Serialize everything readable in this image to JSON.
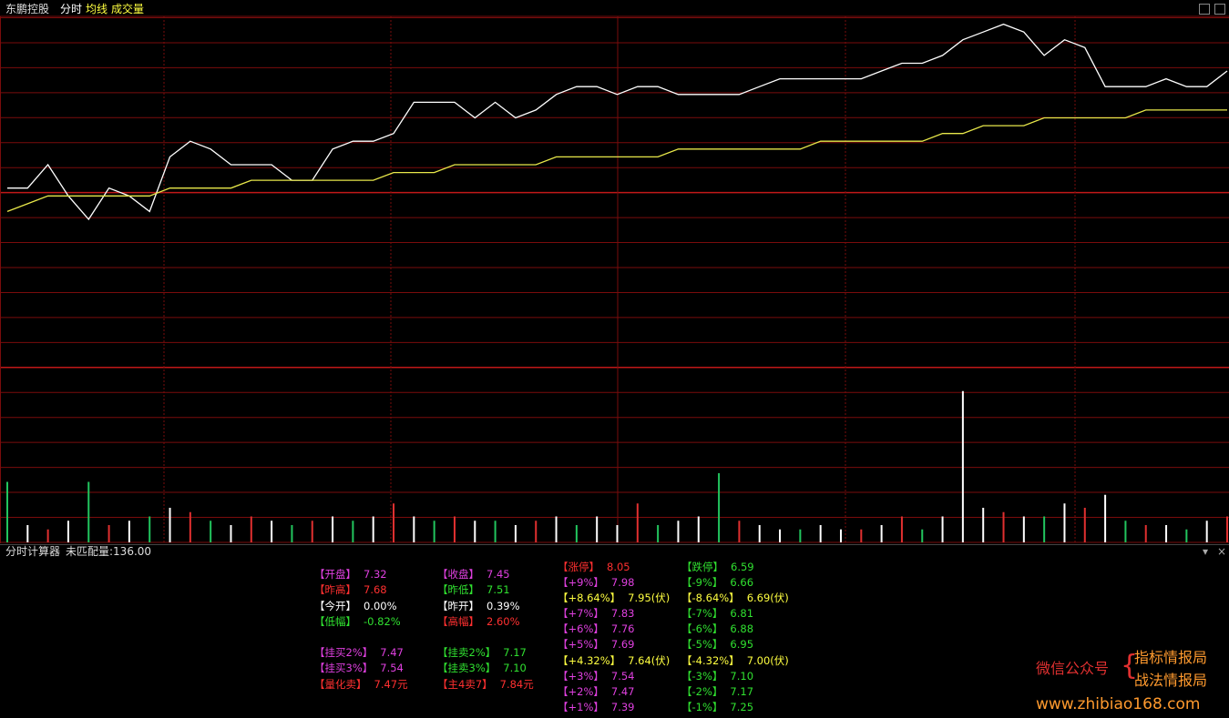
{
  "header": {
    "stock": "东鹏控股",
    "tabs": [
      "分时",
      "均线",
      "成交量"
    ]
  },
  "chart_data": [
    {
      "type": "line",
      "xlim": [
        0,
        240
      ],
      "ylim": [
        7.22,
        7.67
      ],
      "x": [
        0,
        4,
        8,
        12,
        16,
        20,
        24,
        28,
        32,
        36,
        40,
        44,
        48,
        52,
        56,
        60,
        64,
        68,
        72,
        76,
        80,
        84,
        88,
        92,
        96,
        100,
        104,
        108,
        112,
        116,
        120,
        124,
        128,
        132,
        136,
        140,
        144,
        148,
        152,
        156,
        160,
        164,
        168,
        172,
        176,
        180,
        184,
        188,
        192,
        196,
        200,
        204,
        208,
        212,
        216,
        220,
        224,
        228,
        232,
        236,
        240
      ],
      "series": [
        {
          "color": "#ffffff",
          "values": [
            7.45,
            7.45,
            7.48,
            7.44,
            7.41,
            7.45,
            7.44,
            7.42,
            7.49,
            7.51,
            7.5,
            7.48,
            7.48,
            7.48,
            7.46,
            7.46,
            7.5,
            7.51,
            7.51,
            7.52,
            7.56,
            7.56,
            7.56,
            7.54,
            7.56,
            7.54,
            7.55,
            7.57,
            7.58,
            7.58,
            7.57,
            7.58,
            7.58,
            7.57,
            7.57,
            7.57,
            7.57,
            7.58,
            7.59,
            7.59,
            7.59,
            7.59,
            7.59,
            7.6,
            7.61,
            7.61,
            7.62,
            7.64,
            7.65,
            7.66,
            7.65,
            7.62,
            7.64,
            7.63,
            7.58,
            7.58,
            7.58,
            7.59,
            7.58,
            7.58,
            7.6
          ]
        },
        {
          "color": "#e8e84a",
          "values": [
            7.42,
            7.43,
            7.44,
            7.44,
            7.44,
            7.44,
            7.44,
            7.44,
            7.45,
            7.45,
            7.45,
            7.45,
            7.46,
            7.46,
            7.46,
            7.46,
            7.46,
            7.46,
            7.46,
            7.47,
            7.47,
            7.47,
            7.48,
            7.48,
            7.48,
            7.48,
            7.48,
            7.49,
            7.49,
            7.49,
            7.49,
            7.49,
            7.49,
            7.5,
            7.5,
            7.5,
            7.5,
            7.5,
            7.5,
            7.5,
            7.51,
            7.51,
            7.51,
            7.51,
            7.51,
            7.51,
            7.52,
            7.52,
            7.53,
            7.53,
            7.53,
            7.54,
            7.54,
            7.54,
            7.54,
            7.54,
            7.55,
            7.55,
            7.55,
            7.55,
            7.55
          ]
        }
      ]
    },
    {
      "type": "bar",
      "xlim": [
        0,
        240
      ],
      "ylim": [
        0,
        200
      ],
      "x": [
        0,
        4,
        8,
        12,
        16,
        20,
        24,
        28,
        32,
        36,
        40,
        44,
        48,
        52,
        56,
        60,
        64,
        68,
        72,
        76,
        80,
        84,
        88,
        92,
        96,
        100,
        104,
        108,
        112,
        116,
        120,
        124,
        128,
        132,
        136,
        140,
        144,
        148,
        152,
        156,
        160,
        164,
        168,
        172,
        176,
        180,
        184,
        188,
        192,
        196,
        200,
        204,
        208,
        212,
        216,
        220,
        224,
        228,
        232,
        236,
        240
      ],
      "values": [
        70,
        20,
        15,
        25,
        70,
        20,
        25,
        30,
        40,
        35,
        25,
        20,
        30,
        25,
        20,
        25,
        30,
        25,
        30,
        45,
        30,
        25,
        30,
        25,
        25,
        20,
        25,
        30,
        20,
        30,
        20,
        45,
        20,
        25,
        30,
        80,
        25,
        20,
        15,
        15,
        20,
        15,
        15,
        20,
        30,
        15,
        30,
        175,
        40,
        35,
        30,
        30,
        45,
        40,
        55,
        25,
        20,
        20,
        15,
        25,
        30
      ],
      "colors": [
        "#22c55e",
        "#ffffff",
        "#e03030",
        "#ffffff",
        "#22c55e",
        "#e03030",
        "#ffffff",
        "#22c55e",
        "#ffffff",
        "#e03030",
        "#22c55e",
        "#ffffff",
        "#e03030",
        "#ffffff",
        "#22c55e",
        "#e03030",
        "#ffffff",
        "#22c55e",
        "#ffffff",
        "#e03030",
        "#ffffff",
        "#22c55e",
        "#e03030",
        "#ffffff",
        "#22c55e",
        "#ffffff",
        "#e03030",
        "#ffffff",
        "#22c55e",
        "#ffffff",
        "#ffffff",
        "#e03030",
        "#22c55e",
        "#ffffff",
        "#ffffff",
        "#22c55e",
        "#e03030",
        "#ffffff",
        "#ffffff",
        "#22c55e",
        "#ffffff",
        "#ffffff",
        "#e03030",
        "#ffffff",
        "#e03030",
        "#22c55e",
        "#ffffff",
        "#ffffff",
        "#ffffff",
        "#e03030",
        "#ffffff",
        "#22c55e",
        "#ffffff",
        "#e03030",
        "#ffffff",
        "#22c55e",
        "#e03030",
        "#ffffff",
        "#22c55e",
        "#ffffff",
        "#e03030"
      ]
    }
  ],
  "calculator": {
    "title": "分时计算器",
    "unmatched": "未匹配量:136.00",
    "columns": [
      [
        {
          "label": "【开盘】",
          "value": "7.32",
          "color": "#e040e0"
        },
        {
          "label": "【昨高】",
          "value": "7.68",
          "color": "#ff3030"
        },
        {
          "label": "【今开】",
          "value": "0.00%",
          "color": "#ffffff"
        },
        {
          "label": "【低幅】",
          "value": "-0.82%",
          "color": "#30e030"
        },
        {
          "label": "【挂买2%】",
          "value": "7.47",
          "color": "#e040e0"
        },
        {
          "label": "【挂买3%】",
          "value": "7.54",
          "color": "#e040e0"
        },
        {
          "label": "【量化卖】",
          "value": "7.47元",
          "color": "#ff3030"
        }
      ],
      [
        {
          "label": "【收盘】",
          "value": "7.45",
          "color": "#e040e0"
        },
        {
          "label": "【昨低】",
          "value": "7.51",
          "color": "#30e030"
        },
        {
          "label": "【昨开】",
          "value": "0.39%",
          "color": "#ffffff"
        },
        {
          "label": "【高幅】",
          "value": "2.60%",
          "color": "#ff3030"
        },
        {
          "label": "【挂卖2%】",
          "value": "7.17",
          "color": "#30e030"
        },
        {
          "label": "【挂卖3%】",
          "value": "7.10",
          "color": "#30e030"
        },
        {
          "label": "【主4卖7】",
          "value": "7.84元",
          "color": "#ff3030"
        }
      ],
      [
        {
          "label": "【涨停】",
          "value": "8.05",
          "color": "#ff3030"
        },
        {
          "label": "【+9%】",
          "value": "7.98",
          "color": "#e040e0"
        },
        {
          "label": "【+8.64%】",
          "value": "7.95(伏)",
          "color": "#ffff40"
        },
        {
          "label": "【+7%】",
          "value": "7.83",
          "color": "#e040e0"
        },
        {
          "label": "【+6%】",
          "value": "7.76",
          "color": "#e040e0"
        },
        {
          "label": "【+5%】",
          "value": "7.69",
          "color": "#e040e0"
        },
        {
          "label": "【+4.32%】",
          "value": "7.64(伏)",
          "color": "#ffff40"
        },
        {
          "label": "【+3%】",
          "value": "7.54",
          "color": "#e040e0"
        },
        {
          "label": "【+2%】",
          "value": "7.47",
          "color": "#e040e0"
        },
        {
          "label": "【+1%】",
          "value": "7.39",
          "color": "#e040e0"
        }
      ],
      [
        {
          "label": "【跌停】",
          "value": "6.59",
          "color": "#30e030"
        },
        {
          "label": "【-9%】",
          "value": "6.66",
          "color": "#30e030"
        },
        {
          "label": "【-8.64%】",
          "value": "6.69(伏)",
          "color": "#ffff40"
        },
        {
          "label": "【-7%】",
          "value": "6.81",
          "color": "#30e030"
        },
        {
          "label": "【-6%】",
          "value": "6.88",
          "color": "#30e030"
        },
        {
          "label": "【-5%】",
          "value": "6.95",
          "color": "#30e030"
        },
        {
          "label": "【-4.32%】",
          "value": "7.00(伏)",
          "color": "#ffff40"
        },
        {
          "label": "【-3%】",
          "value": "7.10",
          "color": "#30e030"
        },
        {
          "label": "【-2%】",
          "value": "7.17",
          "color": "#30e030"
        },
        {
          "label": "【-1%】",
          "value": "7.25",
          "color": "#30e030"
        }
      ]
    ]
  },
  "watermark": {
    "account": "微信公众号",
    "names": [
      "指标情报局",
      "战法情报局"
    ],
    "url": "www.zhibiao168.com"
  }
}
